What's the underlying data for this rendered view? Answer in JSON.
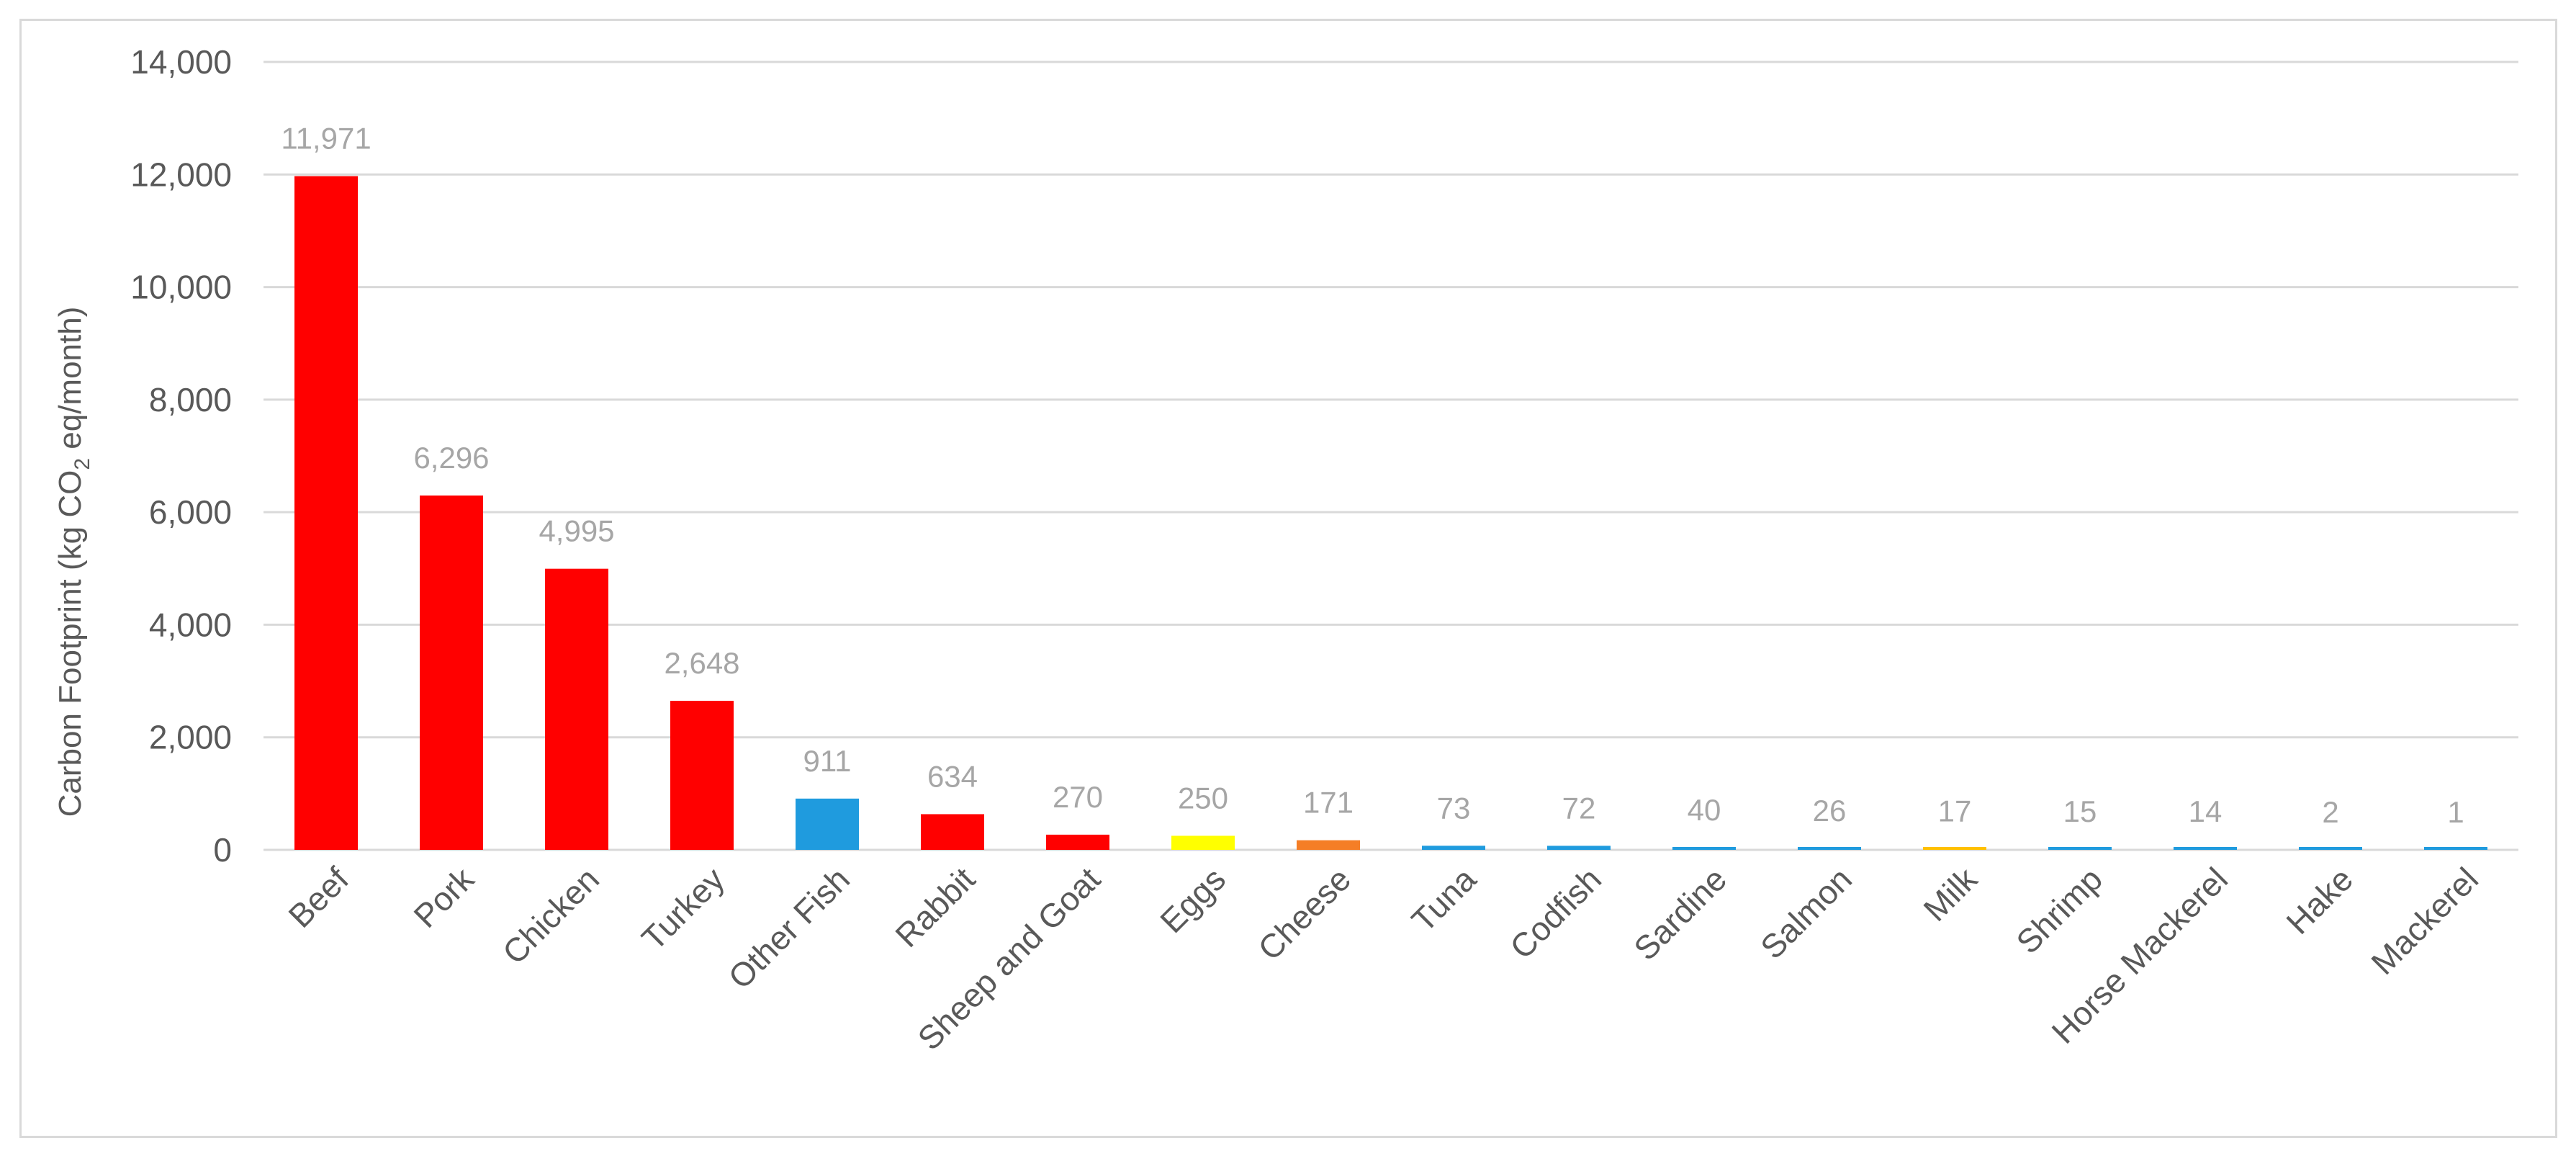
{
  "chart_data": {
    "type": "bar",
    "title": "",
    "xlabel": "",
    "ylabel": {
      "prefix": "Carbon Footprint (kg CO",
      "subscript": "2",
      "suffix": " eq/month)"
    },
    "ylim": [
      0,
      14000
    ],
    "yticks": [
      0,
      2000,
      4000,
      6000,
      8000,
      10000,
      12000,
      14000
    ],
    "ytick_labels": [
      "0",
      "2,000",
      "4,000",
      "6,000",
      "8,000",
      "10,000",
      "12,000",
      "14,000"
    ],
    "grid": true,
    "legend": "none",
    "categories": [
      "Beef",
      "Pork",
      "Chicken",
      "Turkey",
      "Other Fish",
      "Rabbit",
      "Sheep and Goat",
      "Eggs",
      "Cheese",
      "Tuna",
      "Codfish",
      "Sardine",
      "Salmon",
      "Milk",
      "Shrimp",
      "Horse Mackerel",
      "Hake",
      "Mackerel"
    ],
    "values": [
      11971,
      6296,
      4995,
      2648,
      911,
      634,
      270,
      250,
      171,
      73,
      72,
      40,
      26,
      17,
      15,
      14,
      2,
      1
    ],
    "data_labels": [
      "11,971",
      "6,296",
      "4,995",
      "2,648",
      "911",
      "634",
      "270",
      "250",
      "171",
      "73",
      "72",
      "40",
      "26",
      "17",
      "15",
      "14",
      "2",
      "1"
    ],
    "colors": [
      "#ff0000",
      "#ff0000",
      "#ff0000",
      "#ff0000",
      "#1f9bde",
      "#ff0000",
      "#ff0000",
      "#ffff00",
      "#f57e26",
      "#1f9bde",
      "#1f9bde",
      "#1f9bde",
      "#1f9bde",
      "#ffc000",
      "#1f9bde",
      "#1f9bde",
      "#1f9bde",
      "#1f9bde"
    ]
  }
}
